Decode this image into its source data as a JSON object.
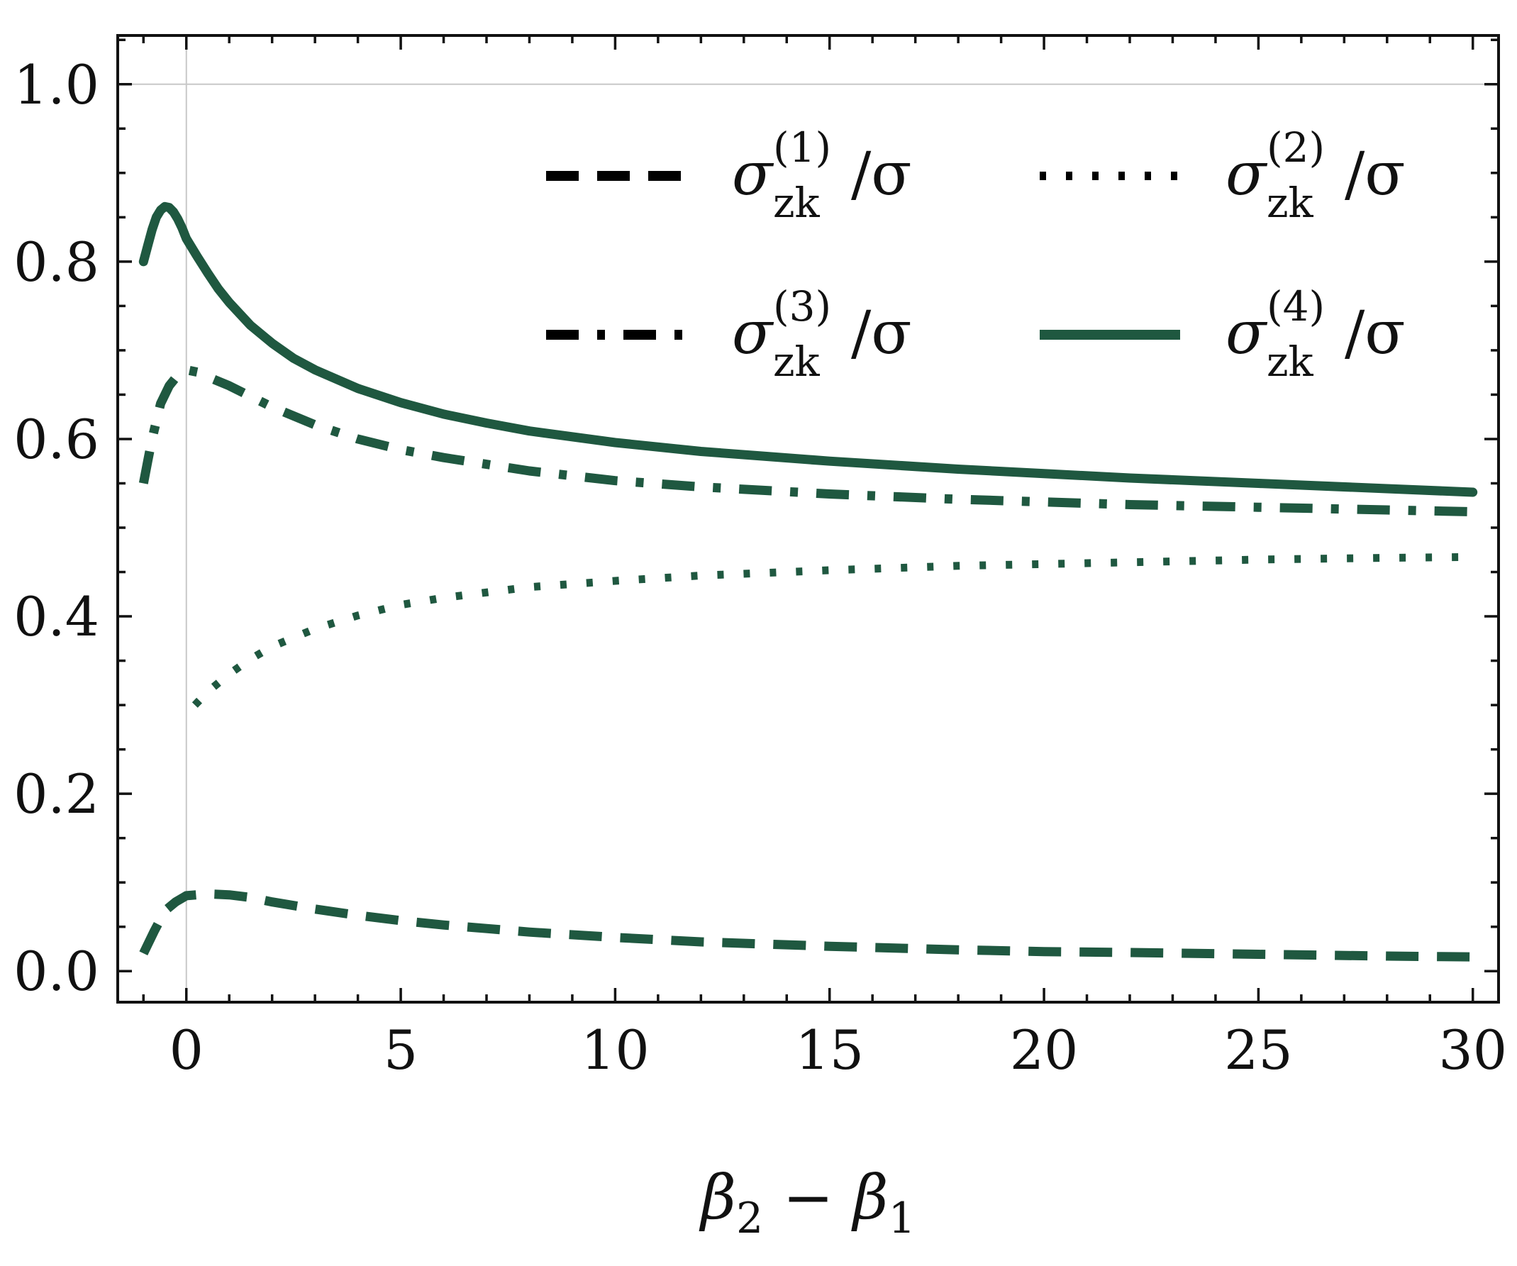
{
  "chart_data": {
    "type": "line",
    "title": "",
    "xlabel": {
      "main": "β",
      "sub1": "2",
      "op": " − ",
      "main2": "β",
      "sub2": "1"
    },
    "ylabel": "",
    "xlim": [
      -1.6,
      30.6
    ],
    "ylim": [
      -0.035,
      1.055
    ],
    "x_ticks": [
      0,
      5,
      10,
      15,
      20,
      25,
      30
    ],
    "x_tick_labels": [
      "0",
      "5",
      "10",
      "15",
      "20",
      "25",
      "30"
    ],
    "y_ticks": [
      0.0,
      0.2,
      0.4,
      0.6,
      0.8,
      1.0
    ],
    "y_tick_labels": [
      "0.0",
      "0.2",
      "0.4",
      "0.6",
      "0.8",
      "1.0"
    ],
    "x_minor_step": 1,
    "y_minor_step": 0.05,
    "reference_lines": {
      "horizontal_y": 1.0,
      "vertical_x": 0
    },
    "grid": false,
    "legend": {
      "placement": "top-right",
      "columns": 2,
      "order": [
        0,
        2,
        1,
        3
      ]
    },
    "line_color": "#1f5840",
    "legend_marker_color": "#000000",
    "series": [
      {
        "name": {
          "sym": "σ",
          "sub": "zk",
          "sup": "(1)",
          "den": "/σ"
        },
        "style": "dashed",
        "x": [
          -1.0,
          -0.75,
          -0.5,
          -0.25,
          0,
          0.5,
          1,
          1.5,
          2,
          3,
          4,
          5,
          6,
          7,
          8,
          10,
          12,
          15,
          18,
          20,
          22,
          25,
          28,
          30
        ],
        "y": [
          0.02,
          0.045,
          0.068,
          0.078,
          0.085,
          0.087,
          0.086,
          0.083,
          0.078,
          0.07,
          0.063,
          0.057,
          0.052,
          0.048,
          0.044,
          0.038,
          0.033,
          0.028,
          0.024,
          0.022,
          0.021,
          0.019,
          0.017,
          0.016
        ]
      },
      {
        "name": {
          "sym": "σ",
          "sub": "zk",
          "sup": "(2)",
          "den": "/σ"
        },
        "style": "dotted",
        "x": [
          0.2,
          0.5,
          1,
          1.5,
          2,
          3,
          4,
          5,
          6,
          8,
          10,
          12,
          15,
          18,
          20,
          22,
          25,
          28,
          30
        ],
        "y": [
          0.3,
          0.315,
          0.335,
          0.352,
          0.366,
          0.386,
          0.401,
          0.413,
          0.421,
          0.433,
          0.44,
          0.446,
          0.452,
          0.457,
          0.459,
          0.461,
          0.464,
          0.466,
          0.467
        ]
      },
      {
        "name": {
          "sym": "σ",
          "sub": "zk",
          "sup": "(3)",
          "den": "/σ"
        },
        "style": "dashdot",
        "x": [
          -1.0,
          -0.9,
          -0.8,
          -0.6,
          -0.4,
          -0.2,
          0,
          0.3,
          0.6,
          1,
          1.5,
          2,
          3,
          4,
          5,
          6,
          8,
          10,
          12,
          15,
          18,
          20,
          22,
          25,
          28,
          30
        ],
        "y": [
          0.55,
          0.575,
          0.6,
          0.64,
          0.66,
          0.672,
          0.678,
          0.675,
          0.668,
          0.66,
          0.648,
          0.636,
          0.616,
          0.6,
          0.588,
          0.579,
          0.564,
          0.553,
          0.546,
          0.538,
          0.532,
          0.529,
          0.526,
          0.523,
          0.52,
          0.518
        ]
      },
      {
        "name": {
          "sym": "σ",
          "sub": "zk",
          "sup": "(4)",
          "den": "/σ"
        },
        "style": "solid",
        "x": [
          -1.0,
          -0.9,
          -0.8,
          -0.7,
          -0.6,
          -0.5,
          -0.4,
          -0.3,
          -0.2,
          -0.1,
          0,
          0.25,
          0.5,
          0.75,
          1,
          1.5,
          2,
          2.5,
          3,
          4,
          5,
          6,
          7,
          8,
          10,
          12,
          15,
          18,
          20,
          22,
          25,
          28,
          30
        ],
        "y": [
          0.8,
          0.818,
          0.836,
          0.85,
          0.858,
          0.862,
          0.861,
          0.856,
          0.848,
          0.838,
          0.826,
          0.806,
          0.787,
          0.769,
          0.754,
          0.728,
          0.708,
          0.691,
          0.678,
          0.657,
          0.641,
          0.628,
          0.618,
          0.609,
          0.596,
          0.586,
          0.575,
          0.566,
          0.561,
          0.556,
          0.55,
          0.544,
          0.54
        ]
      }
    ]
  }
}
